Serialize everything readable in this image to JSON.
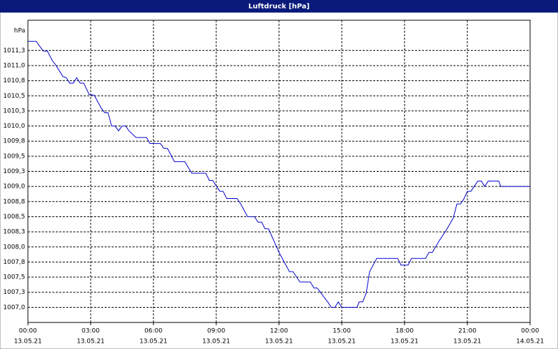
{
  "chart_data": {
    "type": "line",
    "title": "Luftdruck [hPa]",
    "y_label": "hPa",
    "x": [
      0,
      0.4,
      0.73,
      0.93,
      1.17,
      1.33,
      1.67,
      1.83,
      2.0,
      2.17,
      2.33,
      2.5,
      2.67,
      2.93,
      3.17,
      3.5,
      3.67,
      3.83,
      4.0,
      4.17,
      4.33,
      4.5,
      4.67,
      4.83,
      5.17,
      5.67,
      5.83,
      6.33,
      6.5,
      6.67,
      7.0,
      7.5,
      7.83,
      8.5,
      8.67,
      8.83,
      9.17,
      9.33,
      9.5,
      10.0,
      10.17,
      10.5,
      10.83,
      11.0,
      11.17,
      11.33,
      11.5,
      12.0,
      12.5,
      12.67,
      13.0,
      13.5,
      13.67,
      13.83,
      14.0,
      14.17,
      14.33,
      14.5,
      14.67,
      14.83,
      15.0,
      15.73,
      15.83,
      16.0,
      16.17,
      16.33,
      16.5,
      16.67,
      17.67,
      17.83,
      18.17,
      18.33,
      19.0,
      19.17,
      19.33,
      19.67,
      20.0,
      20.33,
      20.5,
      20.67,
      20.83,
      21.0,
      21.17,
      21.5,
      21.67,
      21.83,
      22.0,
      22.5,
      22.6,
      24
    ],
    "series": [
      {
        "name": "Luftdruck",
        "color": "#0000cc",
        "values": [
          1011.4,
          1011.4,
          1011.24,
          1011.24,
          1011.08,
          1011.01,
          1010.82,
          1010.8,
          1010.71,
          1010.71,
          1010.8,
          1010.71,
          1010.71,
          1010.52,
          1010.51,
          1010.3,
          1010.22,
          1010.22,
          1010.0,
          1010.0,
          1009.92,
          1010.0,
          1010.0,
          1009.92,
          1009.81,
          1009.81,
          1009.71,
          1009.71,
          1009.63,
          1009.63,
          1009.41,
          1009.41,
          1009.22,
          1009.22,
          1009.1,
          1009.1,
          1008.92,
          1008.92,
          1008.8,
          1008.8,
          1008.71,
          1008.5,
          1008.5,
          1008.41,
          1008.41,
          1008.3,
          1008.3,
          1007.91,
          1007.59,
          1007.59,
          1007.42,
          1007.42,
          1007.32,
          1007.32,
          1007.24,
          1007.16,
          1007.09,
          1007.0,
          1007.0,
          1007.09,
          1007.0,
          1007.0,
          1007.09,
          1007.09,
          1007.24,
          1007.59,
          1007.7,
          1007.81,
          1007.81,
          1007.7,
          1007.7,
          1007.81,
          1007.81,
          1007.91,
          1007.91,
          1008.11,
          1008.28,
          1008.48,
          1008.71,
          1008.71,
          1008.79,
          1008.92,
          1008.92,
          1009.09,
          1009.09,
          1009.0,
          1009.09,
          1009.09,
          1009.0,
          1009.0
        ]
      }
    ],
    "xlim": [
      0,
      24
    ],
    "xticks": [
      {
        "value": 0,
        "label": "00:00"
      },
      {
        "value": 3,
        "label": "03:00"
      },
      {
        "value": 6,
        "label": "06:00"
      },
      {
        "value": 9,
        "label": "09:00"
      },
      {
        "value": 12,
        "label": "12:00"
      },
      {
        "value": 15,
        "label": "15:00"
      },
      {
        "value": 18,
        "label": "18:00"
      },
      {
        "value": 21,
        "label": "21:00"
      },
      {
        "value": 24,
        "label": "00:00"
      }
    ],
    "xtick_dates": [
      "13.05.21",
      "13.05.21",
      "13.05.21",
      "13.05.21",
      "13.05.21",
      "13.05.21",
      "13.05.21",
      "13.05.21",
      "14.05.21"
    ],
    "ylim": [
      1006.75,
      1011.75
    ],
    "yticks": [
      {
        "value": 1007,
        "label": "1007,0"
      },
      {
        "value": 1007.25,
        "label": "1007,3"
      },
      {
        "value": 1007.5,
        "label": "1007,5"
      },
      {
        "value": 1007.75,
        "label": "1007,8"
      },
      {
        "value": 1008,
        "label": "1008,0"
      },
      {
        "value": 1008.25,
        "label": "1008,3"
      },
      {
        "value": 1008.5,
        "label": "1008,5"
      },
      {
        "value": 1008.75,
        "label": "1008,8"
      },
      {
        "value": 1009,
        "label": "1009,0"
      },
      {
        "value": 1009.25,
        "label": "1009,3"
      },
      {
        "value": 1009.5,
        "label": "1009,5"
      },
      {
        "value": 1009.75,
        "label": "1009,8"
      },
      {
        "value": 1010,
        "label": "1010,0"
      },
      {
        "value": 1010.25,
        "label": "1010,3"
      },
      {
        "value": 1010.5,
        "label": "1010,5"
      },
      {
        "value": 1010.75,
        "label": "1010,8"
      },
      {
        "value": 1011,
        "label": "1011,0"
      },
      {
        "value": 1011.25,
        "label": "1011,3"
      }
    ],
    "grid": true
  }
}
